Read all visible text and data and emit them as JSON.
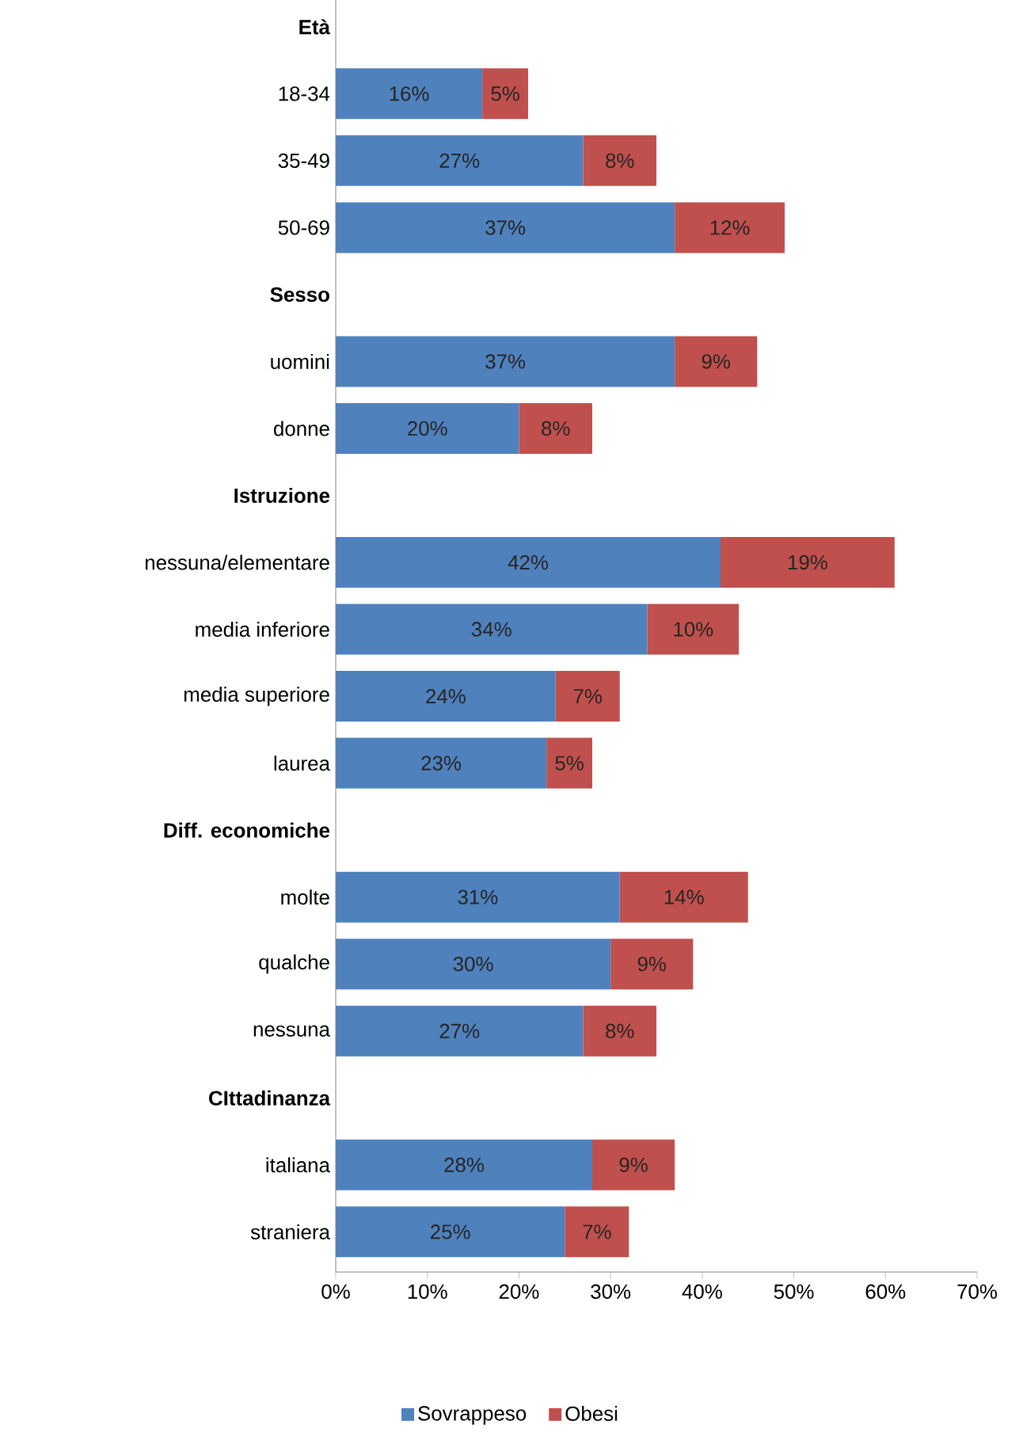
{
  "chart_data": {
    "type": "bar",
    "orientation": "horizontal",
    "stacked": true,
    "categories": [
      "Età",
      "18-34",
      "35-49",
      "50-69",
      "Sesso",
      "uomini",
      "donne",
      "Istruzione",
      "nessuna/elementare",
      "media inferiore",
      "media superiore",
      "laurea",
      "Diff. economiche",
      "molte",
      "qualche",
      "nessuna",
      "CIttadinanza",
      "italiana",
      "straniera"
    ],
    "series": [
      {
        "name": "Sovrappeso",
        "color": "#4f81bd",
        "values": [
          null,
          16,
          27,
          37,
          null,
          37,
          20,
          null,
          42,
          34,
          24,
          23,
          null,
          31,
          30,
          27,
          null,
          28,
          25
        ],
        "value_labels": [
          null,
          "16%",
          "27%",
          "37%",
          null,
          "37%",
          "20%",
          null,
          "42%",
          "34%",
          "24%",
          "23%",
          null,
          "31%",
          "30%",
          "27%",
          null,
          "28%",
          "25%"
        ]
      },
      {
        "name": "Obesi",
        "color": "#c0504d",
        "values": [
          null,
          5,
          8,
          12,
          null,
          9,
          8,
          null,
          19,
          10,
          7,
          5,
          null,
          14,
          9,
          8,
          null,
          9,
          7
        ],
        "value_labels": [
          null,
          "5%",
          "8%",
          "12%",
          null,
          "9%",
          "8%",
          null,
          "19%",
          "10%",
          "7%",
          "5%",
          null,
          "14%",
          "9%",
          "8%",
          null,
          "9%",
          "7%"
        ]
      }
    ],
    "xlim": [
      0,
      70
    ],
    "xticks": [
      {
        "value": 0,
        "label": "0%"
      },
      {
        "value": 10,
        "label": "10%"
      },
      {
        "value": 20,
        "label": "20%"
      },
      {
        "value": 30,
        "label": "30%"
      },
      {
        "value": 40,
        "label": "40%"
      },
      {
        "value": 50,
        "label": "50%"
      },
      {
        "value": 60,
        "label": "60%"
      },
      {
        "value": 70,
        "label": "70%"
      }
    ],
    "grid": false,
    "legend": "bottom"
  }
}
